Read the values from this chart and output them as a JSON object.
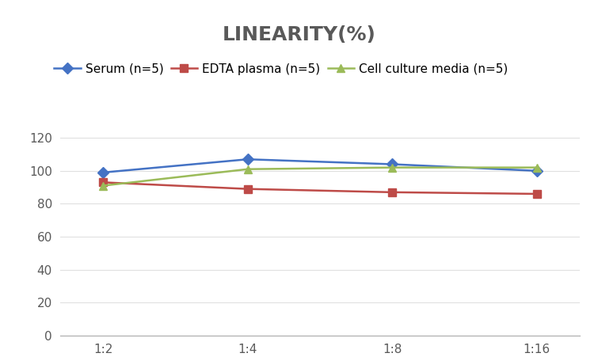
{
  "title": "LINEARITY(%)",
  "x_labels": [
    "1:2",
    "1:4",
    "1:8",
    "1:16"
  ],
  "x_positions": [
    0,
    1,
    2,
    3
  ],
  "series": [
    {
      "label": "Serum (n=5)",
      "values": [
        99,
        107,
        104,
        100
      ],
      "color": "#4472C4",
      "marker": "D",
      "markersize": 7,
      "linewidth": 1.8
    },
    {
      "label": "EDTA plasma (n=5)",
      "values": [
        93,
        89,
        87,
        86
      ],
      "color": "#BE4B48",
      "marker": "s",
      "markersize": 7,
      "linewidth": 1.8
    },
    {
      "label": "Cell culture media (n=5)",
      "values": [
        91,
        101,
        102,
        102
      ],
      "color": "#9BBB59",
      "marker": "^",
      "markersize": 7,
      "linewidth": 1.8
    }
  ],
  "ylim": [
    0,
    130
  ],
  "yticks": [
    0,
    20,
    40,
    60,
    80,
    100,
    120
  ],
  "background_color": "#FFFFFF",
  "grid_color": "#E0E0E0",
  "title_fontsize": 18,
  "title_color": "#595959",
  "legend_fontsize": 11,
  "tick_fontsize": 11,
  "tick_color": "#595959"
}
